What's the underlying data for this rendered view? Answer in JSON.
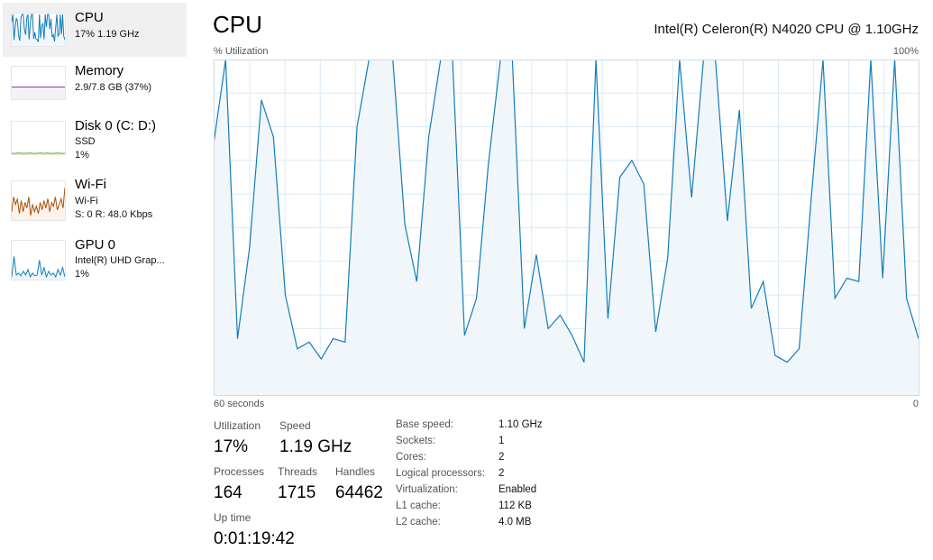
{
  "sidebar": {
    "items": [
      {
        "title": "CPU",
        "lines": [
          "17%  1.19 GHz"
        ],
        "color": "#117dbb",
        "fill": "#f1f6fa",
        "spark": [
          75,
          100,
          17,
          60,
          88,
          77,
          30,
          14,
          90,
          100,
          100,
          51,
          34,
          90,
          100,
          18,
          69,
          100,
          100,
          20,
          42,
          20,
          18,
          10,
          100,
          23,
          65,
          70,
          19,
          100,
          59,
          100,
          100,
          52,
          85,
          26,
          34,
          12,
          58,
          100,
          29,
          35,
          100,
          35,
          100,
          29,
          17
        ]
      },
      {
        "title": "Memory",
        "lines": [
          "2.9/7.8 GB (37%)"
        ],
        "color": "#8b12ae",
        "fill": "#f4f2f4",
        "spark": [
          37,
          37,
          37,
          37,
          37,
          37,
          37,
          37,
          37,
          37
        ]
      },
      {
        "title": "Disk 0 (C: D:)",
        "lines": [
          "SSD",
          "1%"
        ],
        "color": "#4da60c",
        "fill": "#eff4eb",
        "spark": [
          0,
          0,
          1,
          0,
          0,
          1,
          0,
          0,
          1,
          0,
          1,
          0,
          0,
          1,
          0,
          0
        ]
      },
      {
        "title": "Wi-Fi",
        "lines": [
          "Wi-Fi",
          "S: 0 R: 48.0 Kbps"
        ],
        "color": "#a74f01",
        "fill": "#fcf3eb",
        "spark": [
          20,
          60,
          40,
          55,
          15,
          50,
          20,
          45,
          30,
          60,
          10,
          40,
          20,
          35,
          15,
          45,
          25,
          50,
          30,
          55,
          20,
          45,
          35,
          60,
          25,
          40,
          55,
          30,
          85
        ]
      },
      {
        "title": "GPU 0",
        "lines": [
          "Intel(R) UHD Grap...",
          "1%"
        ],
        "color": "#117dbb",
        "fill": "#f1f6fa",
        "spark": [
          5,
          60,
          10,
          15,
          8,
          20,
          10,
          25,
          5,
          15,
          8,
          10,
          50,
          10,
          30,
          5,
          20,
          10,
          15,
          5,
          25,
          10,
          30,
          5
        ]
      }
    ]
  },
  "header": {
    "title": "CPU",
    "model": "Intel(R) Celeron(R) N4020 CPU @ 1.10GHz"
  },
  "chart_data": {
    "type": "area",
    "ylabel": "% Utilization",
    "y_max_label": "100%",
    "y_min_label": "0",
    "x_left_label": "60 seconds",
    "ylim": [
      0,
      100
    ],
    "grid": true,
    "line_color": "#117dbb",
    "fill_color": "#f1f6fa",
    "grid_color": "#d9eaf4",
    "values": [
      75,
      100,
      17,
      44,
      88,
      77,
      30,
      14,
      16,
      11,
      17,
      16,
      80,
      100,
      100,
      100,
      51,
      34,
      77,
      100,
      100,
      18,
      29,
      69,
      100,
      100,
      20,
      42,
      20,
      24,
      18,
      10,
      100,
      23,
      65,
      70,
      63,
      19,
      41,
      100,
      59,
      100,
      100,
      52,
      85,
      26,
      34,
      12,
      10,
      14,
      58,
      100,
      29,
      35,
      34,
      100,
      35,
      100,
      29,
      17
    ]
  },
  "stats": {
    "utilization": {
      "label": "Utilization",
      "value": "17%"
    },
    "speed": {
      "label": "Speed",
      "value": "1.19 GHz"
    },
    "processes": {
      "label": "Processes",
      "value": "164"
    },
    "threads": {
      "label": "Threads",
      "value": "1715"
    },
    "handles": {
      "label": "Handles",
      "value": "64462"
    },
    "uptime": {
      "label": "Up time",
      "value": "0:01:19:42"
    }
  },
  "specs": [
    {
      "label": "Base speed:",
      "value": "1.10 GHz"
    },
    {
      "label": "Sockets:",
      "value": "1"
    },
    {
      "label": "Cores:",
      "value": "2"
    },
    {
      "label": "Logical processors:",
      "value": "2"
    },
    {
      "label": "Virtualization:",
      "value": "Enabled"
    },
    {
      "label": "L1 cache:",
      "value": "112 KB"
    },
    {
      "label": "L2 cache:",
      "value": "4.0 MB"
    }
  ]
}
